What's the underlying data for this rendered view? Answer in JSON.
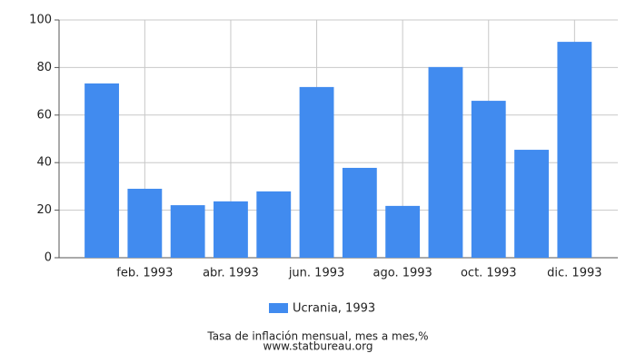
{
  "chart_data": {
    "type": "bar",
    "categories": [
      null,
      "feb. 1993",
      null,
      "abr. 1993",
      null,
      "jun. 1993",
      null,
      "ago. 1993",
      null,
      "oct. 1993",
      null,
      "dic. 1993"
    ],
    "series": [
      {
        "name": "Ucrania, 1993",
        "color": "#418bef",
        "values": [
          73.3,
          29.0,
          22.1,
          23.7,
          27.9,
          71.8,
          37.8,
          21.8,
          80.2,
          66.0,
          45.4,
          90.8
        ]
      }
    ],
    "ylim": [
      0,
      100
    ],
    "yticks": [
      0,
      20,
      40,
      60,
      80,
      100
    ],
    "grid": true,
    "footer": [
      "Tasa de inflación mensual, mes a mes,%",
      "www.statbureau.org"
    ]
  }
}
